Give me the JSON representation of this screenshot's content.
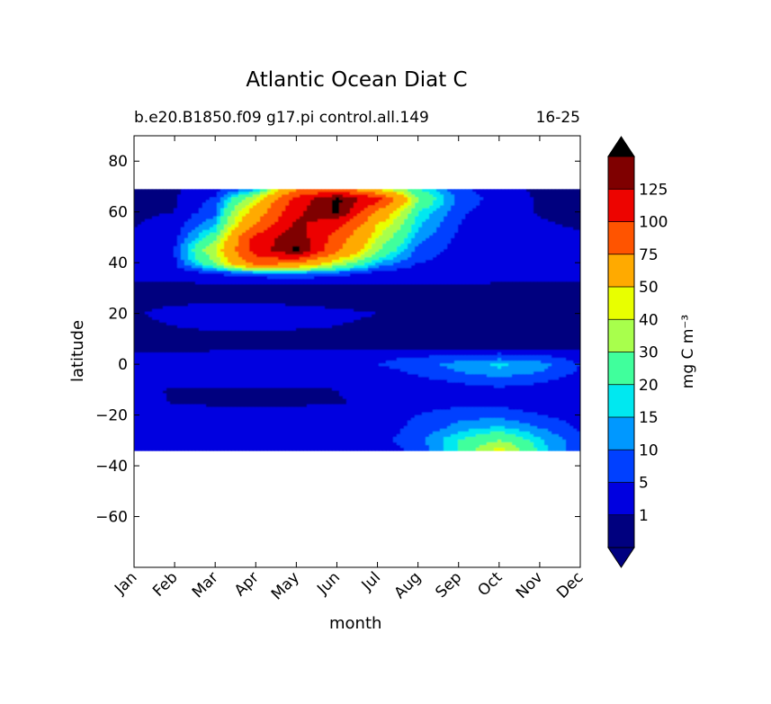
{
  "chart_data": {
    "type": "heatmap",
    "title": "Atlantic Ocean Diat C",
    "subtitle": "b.e20.B1850.f09 g17.pi control.all.149",
    "period": "16-25",
    "xlabel": "month",
    "ylabel": "latitude",
    "x_ticks": [
      "Jan",
      "Feb",
      "Mar",
      "Apr",
      "May",
      "Jun",
      "Jul",
      "Aug",
      "Sep",
      "Oct",
      "Nov",
      "Dec"
    ],
    "y_ticks": [
      80,
      60,
      40,
      20,
      0,
      -20,
      -40,
      -60
    ],
    "ylim": [
      -80,
      90
    ],
    "data_lat_range": [
      -34,
      69
    ],
    "colorbar": {
      "label": "mg C m⁻³",
      "levels": [
        1,
        5,
        10,
        15,
        20,
        30,
        40,
        50,
        75,
        100,
        125
      ],
      "colors": [
        "#00007f",
        "#0000e0",
        "#0040ff",
        "#0098ff",
        "#00e8f0",
        "#40ff9c",
        "#a8ff4c",
        "#e8ff00",
        "#ffaa00",
        "#ff5400",
        "#ed0400",
        "#7f0000"
      ],
      "extend_low_color": "#000080",
      "extend_high_color": "#000000"
    },
    "field": {
      "lat": [
        69,
        65,
        60,
        55,
        50,
        45,
        40,
        36,
        33,
        30,
        25,
        20,
        15,
        10,
        6,
        2,
        0,
        -3,
        -6,
        -10,
        -15,
        -20,
        -25,
        -30,
        -34
      ],
      "months": [
        1,
        2,
        3,
        4,
        5,
        6,
        7,
        8,
        9,
        10,
        11,
        12
      ],
      "values": [
        [
          0.5,
          0.5,
          3,
          12,
          70,
          90,
          45,
          20,
          6,
          2,
          0.5,
          0.5
        ],
        [
          0.5,
          0.6,
          6,
          40,
          110,
          150,
          110,
          30,
          8,
          3,
          0.6,
          0.5
        ],
        [
          0.6,
          1,
          8,
          60,
          120,
          150,
          70,
          20,
          6,
          2,
          0.8,
          0.6
        ],
        [
          0.8,
          2,
          14,
          75,
          130,
          110,
          50,
          16,
          5,
          2,
          1.2,
          0.8
        ],
        [
          1.5,
          3,
          25,
          110,
          140,
          90,
          40,
          12,
          4,
          2,
          1.5,
          1.2
        ],
        [
          2,
          5,
          40,
          110,
          150,
          80,
          30,
          8,
          3,
          2,
          1.5,
          1.5
        ],
        [
          2,
          4,
          30,
          90,
          80,
          40,
          15,
          5,
          3,
          2,
          1.5,
          2
        ],
        [
          1.5,
          2,
          5,
          10,
          12,
          8,
          3,
          2,
          2,
          1.5,
          1.5,
          1.5
        ],
        [
          1,
          1,
          1.5,
          1.5,
          2,
          1.5,
          1.5,
          1.5,
          1.5,
          1.2,
          1,
          1
        ],
        [
          0.5,
          0.5,
          0.5,
          0.5,
          0.5,
          0.5,
          0.5,
          0.5,
          0.5,
          0.5,
          0.5,
          0.5
        ],
        [
          0.7,
          0.8,
          0.9,
          0.9,
          0.8,
          0.7,
          0.6,
          0.6,
          0.5,
          0.5,
          0.5,
          0.5
        ],
        [
          0.9,
          1.3,
          1.5,
          1.5,
          1.3,
          1.2,
          1,
          0.7,
          0.6,
          0.6,
          0.5,
          0.5
        ],
        [
          0.8,
          1,
          1.2,
          1.2,
          1.1,
          1,
          0.8,
          0.6,
          0.5,
          0.5,
          0.5,
          0.5
        ],
        [
          0.6,
          0.6,
          0.7,
          0.7,
          0.7,
          0.6,
          0.6,
          0.6,
          0.5,
          0.5,
          0.5,
          0.5
        ],
        [
          0.5,
          0.5,
          0.5,
          0.5,
          0.5,
          0.5,
          0.5,
          0.5,
          0.5,
          0.5,
          0.5,
          0.5
        ],
        [
          2,
          2,
          3,
          3,
          3,
          3,
          4,
          6,
          8,
          10,
          8,
          3
        ],
        [
          3,
          3,
          3,
          3,
          3,
          4,
          5,
          8,
          12,
          16,
          12,
          5
        ],
        [
          2,
          2,
          2,
          2,
          2,
          2,
          3,
          6,
          10,
          14,
          10,
          4
        ],
        [
          2,
          2,
          2,
          2,
          2,
          2,
          2,
          4,
          6,
          8,
          6,
          3
        ],
        [
          1.5,
          0.8,
          0.6,
          0.6,
          0.7,
          1,
          2,
          3,
          3,
          4,
          3,
          2
        ],
        [
          2,
          0.8,
          0.6,
          0.6,
          0.6,
          0.8,
          1.5,
          2,
          3,
          3,
          2,
          2
        ],
        [
          2,
          2,
          2,
          2,
          2,
          2,
          3,
          5,
          8,
          8,
          5,
          3
        ],
        [
          1.5,
          1.5,
          1.5,
          1.5,
          1.5,
          2,
          3,
          6,
          12,
          16,
          10,
          4
        ],
        [
          4,
          3,
          2,
          2,
          2,
          2,
          3,
          8,
          20,
          30,
          16,
          6
        ],
        [
          4,
          3,
          2,
          2,
          2,
          2,
          3,
          6,
          20,
          45,
          18,
          6
        ]
      ]
    }
  }
}
